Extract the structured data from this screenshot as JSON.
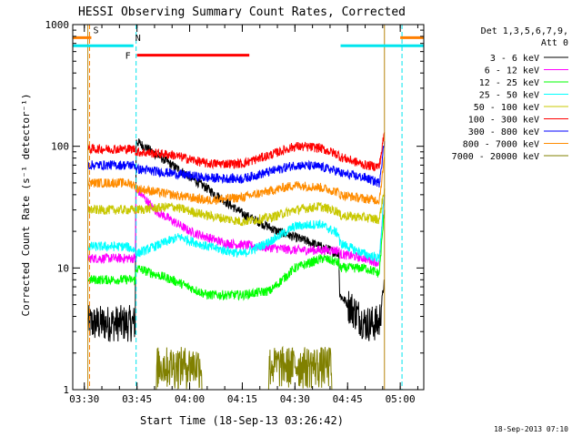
{
  "chart_data": {
    "type": "line",
    "title": "HESSI Observing Summary Count Rates, Corrected",
    "xlabel": "Start Time (18-Sep-13 03:26:42)",
    "ylabel": "Corrected Count Rate (s⁻¹ detector⁻¹)",
    "y_scale": "log",
    "ylim": [
      1,
      1000
    ],
    "xlim": [
      "03:26:42",
      "05:06:42"
    ],
    "x_ticks": [
      "03:30",
      "03:45",
      "04:00",
      "04:15",
      "04:30",
      "04:45",
      "05:00"
    ],
    "y_ticks": [
      "1",
      "10",
      "100",
      "1000"
    ],
    "footer_date": "18-Sep-2013 07:10",
    "legend": {
      "header_lines": [
        "Det 1,3,5,6,7,9,",
        "Att 0"
      ],
      "placement": "right"
    },
    "annotations": [
      {
        "label": "S",
        "color": "#ff7f00",
        "segments": [
          [
            "03:26:42",
            "03:32:00"
          ],
          [
            "05:00:00",
            "05:06:42"
          ]
        ],
        "level": 780
      },
      {
        "label": "N",
        "color": "#00e5ee",
        "segments": [
          [
            "03:26:42",
            "03:44:00"
          ],
          [
            "04:43:00",
            "05:06:42"
          ]
        ],
        "level": 670
      },
      {
        "label": "F",
        "color": "#ff0000",
        "segments": [
          [
            "03:45:00",
            "04:17:00"
          ]
        ],
        "level": 560
      }
    ],
    "vertical_markers": [
      {
        "time": "03:31:30",
        "color": "#ff7f00",
        "style": "dashed"
      },
      {
        "time": "03:44:45",
        "color": "#00e5ee",
        "style": "dashed"
      },
      {
        "time": "05:00:30",
        "color": "#00e5ee",
        "style": "dashed"
      }
    ],
    "data_gaps": [
      {
        "start": "03:26:42",
        "end": "03:31:00"
      },
      {
        "start": "04:55:30",
        "end": "05:06:42"
      }
    ],
    "series": [
      {
        "name": "3 - 6 keV",
        "color": "#000000",
        "times": [
          "03:31:00",
          "03:42:00",
          "03:44:30",
          "03:44:45",
          "03:47:00",
          "03:55:00",
          "04:05:00",
          "04:15:00",
          "04:25:00",
          "04:35:00",
          "04:40:00",
          "04:42:30",
          "04:42:45",
          "04:50:00",
          "04:54:00",
          "04:55:30"
        ],
        "values": [
          3.5,
          3.5,
          3.5,
          110,
          100,
          70,
          45,
          28,
          20,
          16,
          14,
          13,
          6,
          3.5,
          3.5,
          8
        ]
      },
      {
        "name": "6 - 12 keV",
        "color": "#ff00ff",
        "times": [
          "03:31:00",
          "03:42:00",
          "03:44:30",
          "03:44:45",
          "03:50:00",
          "04:00:00",
          "04:10:00",
          "04:20:00",
          "04:30:00",
          "04:38:00",
          "04:42:30",
          "04:42:45",
          "04:50:00",
          "04:54:00",
          "04:55:30"
        ],
        "values": [
          12,
          12,
          12,
          45,
          30,
          20,
          16,
          15,
          14,
          14,
          14,
          13,
          12,
          11,
          40
        ]
      },
      {
        "name": "12 - 25 keV",
        "color": "#00ff00",
        "times": [
          "03:31:00",
          "03:42:00",
          "03:44:30",
          "03:44:45",
          "03:55:00",
          "04:05:00",
          "04:15:00",
          "04:23:00",
          "04:30:00",
          "04:38:00",
          "04:42:30",
          "04:42:45",
          "04:50:00",
          "04:54:00",
          "04:55:30"
        ],
        "values": [
          8,
          8,
          8,
          10,
          8,
          6,
          6,
          6.5,
          10,
          12,
          11,
          10,
          10,
          9,
          30
        ]
      },
      {
        "name": "25 - 50 keV",
        "color": "#00ffff",
        "times": [
          "03:31:00",
          "03:42:00",
          "03:44:30",
          "03:44:45",
          "03:50:00",
          "03:57:00",
          "04:05:00",
          "04:15:00",
          "04:22:00",
          "04:30:00",
          "04:37:00",
          "04:42:30",
          "04:42:45",
          "04:50:00",
          "04:54:00",
          "04:55:30"
        ],
        "values": [
          15,
          15,
          14,
          13,
          15,
          18,
          15,
          13,
          16,
          22,
          23,
          19,
          16,
          13,
          12,
          40
        ]
      },
      {
        "name": "50 - 100 keV",
        "color": "#c8c800",
        "times": [
          "03:31:00",
          "03:42:00",
          "03:44:30",
          "03:44:45",
          "03:55:00",
          "04:05:00",
          "04:15:00",
          "04:23:00",
          "04:30:00",
          "04:37:00",
          "04:42:30",
          "04:42:45",
          "04:50:00",
          "04:54:00",
          "04:55:30"
        ],
        "values": [
          30,
          30,
          30,
          30,
          32,
          27,
          24,
          26,
          30,
          32,
          29,
          27,
          26,
          25,
          45
        ]
      },
      {
        "name": "100 - 300 keV",
        "color": "#ff0000",
        "times": [
          "03:31:00",
          "03:42:00",
          "03:44:30",
          "03:44:45",
          "03:55:00",
          "04:05:00",
          "04:15:00",
          "04:23:00",
          "04:30:00",
          "04:37:00",
          "04:42:30",
          "04:42:45",
          "04:50:00",
          "04:54:00",
          "04:55:30"
        ],
        "values": [
          95,
          95,
          95,
          90,
          85,
          72,
          72,
          85,
          100,
          97,
          85,
          82,
          70,
          68,
          130
        ]
      },
      {
        "name": "300 - 800 keV",
        "color": "#0000ff",
        "times": [
          "03:31:00",
          "03:42:00",
          "03:44:30",
          "03:44:45",
          "03:55:00",
          "04:05:00",
          "04:15:00",
          "04:23:00",
          "04:30:00",
          "04:37:00",
          "04:42:30",
          "04:42:45",
          "04:50:00",
          "04:54:00",
          "04:55:30"
        ],
        "values": [
          70,
          70,
          70,
          65,
          60,
          55,
          54,
          62,
          70,
          68,
          62,
          60,
          55,
          50,
          110
        ]
      },
      {
        "name": "800 - 7000 keV",
        "color": "#ff8c00",
        "times": [
          "03:31:00",
          "03:42:00",
          "03:44:30",
          "03:44:45",
          "03:55:00",
          "04:05:00",
          "04:15:00",
          "04:23:00",
          "04:30:00",
          "04:37:00",
          "04:42:30",
          "04:42:45",
          "04:50:00",
          "04:54:00",
          "04:55:30"
        ],
        "values": [
          50,
          50,
          48,
          45,
          40,
          36,
          38,
          43,
          48,
          46,
          42,
          40,
          37,
          36,
          80
        ]
      },
      {
        "name": "7000 - 20000 keV",
        "color": "#808000",
        "times": [
          "03:44:45",
          "03:50:00",
          "03:51:00",
          "04:03:00",
          "04:04:00",
          "04:22:00",
          "04:23:00",
          "04:40:00",
          "04:41:00",
          "04:54:00"
        ],
        "values": [
          1,
          1,
          2.2,
          2.2,
          1,
          1,
          2.2,
          2.2,
          1,
          1
        ]
      }
    ]
  }
}
